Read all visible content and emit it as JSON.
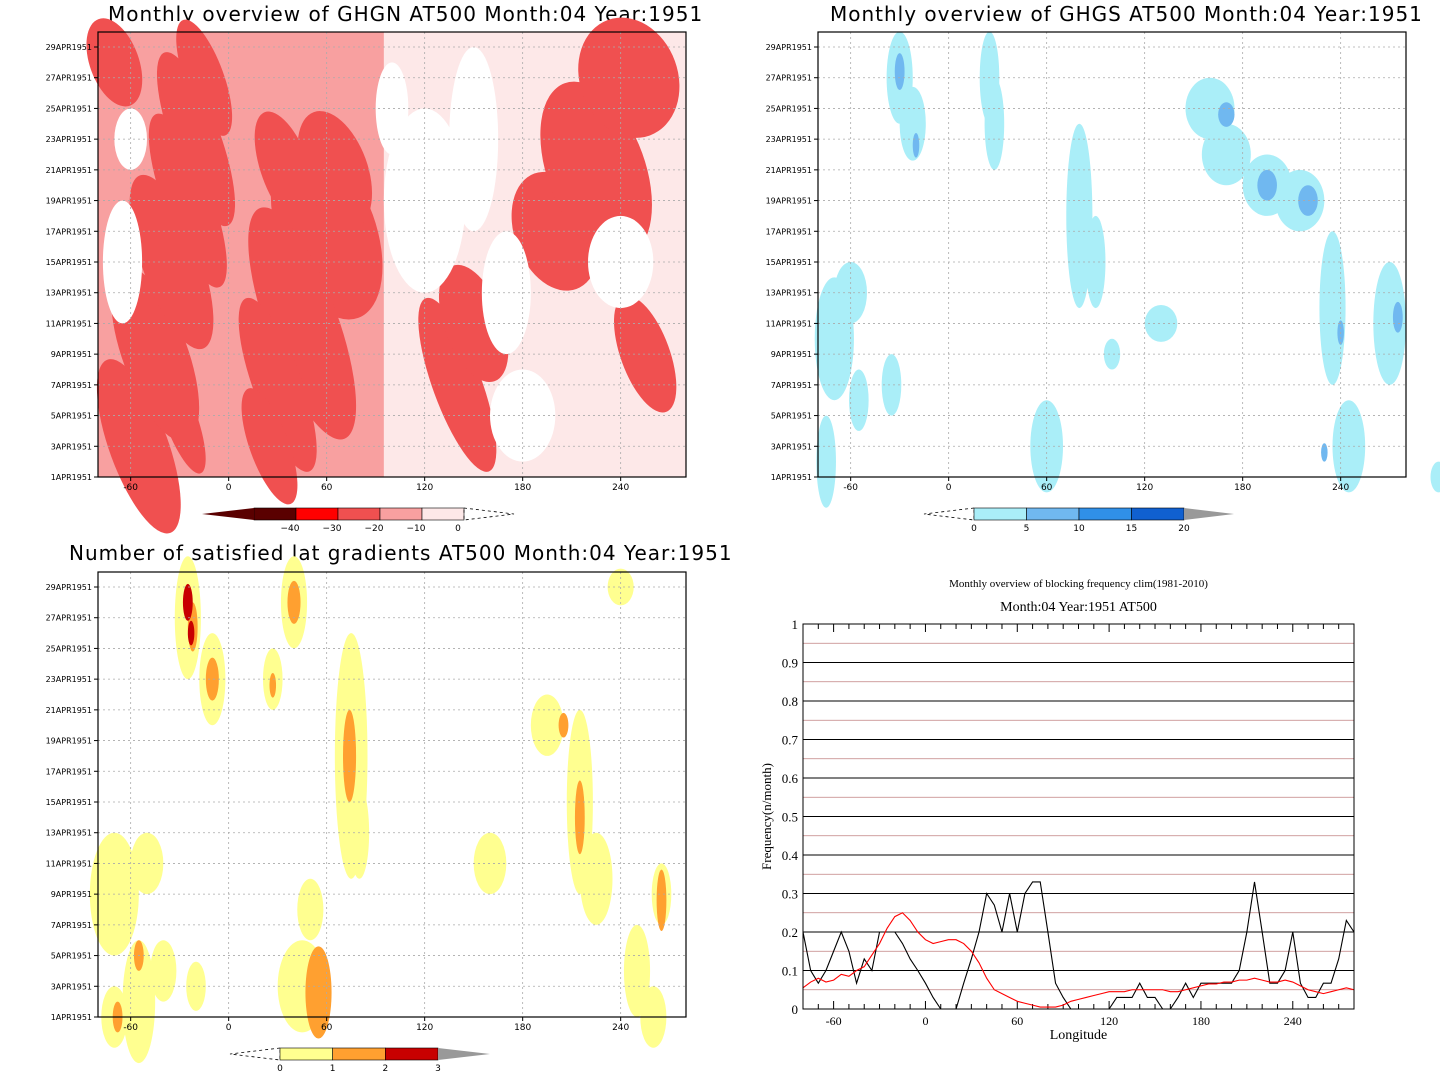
{
  "colors": {
    "red_scale": [
      "#5a0000",
      "#ff0000",
      "#f05050",
      "#f8a0a0",
      "#fde8e8"
    ],
    "blue_scale": [
      "#aaeef8",
      "#70b8f0",
      "#3090e8",
      "#1060d0"
    ],
    "yellow_scale": [
      "#ffff90",
      "#ffa030",
      "#c80000"
    ],
    "plot_bg": "#ffffff"
  },
  "top_left": {
    "title": "Monthly overview of GHGN AT500 Month:04 Year:1951",
    "colorbar_labels": [
      "−40",
      "−30",
      "−20",
      "−10",
      "0"
    ]
  },
  "top_right": {
    "title": "Monthly overview of GHGS AT500 Month:04 Year:1951",
    "colorbar_labels": [
      "0",
      "5",
      "10",
      "15",
      "20"
    ]
  },
  "bottom_left": {
    "title": "Number of satisfied lat gradients AT500 Month:04 Year:1951",
    "colorbar_labels": [
      "0",
      "1",
      "2",
      "3"
    ]
  },
  "dates": [
    "29APR1951",
    "27APR1951",
    "25APR1951",
    "23APR1951",
    "21APR1951",
    "19APR1951",
    "17APR1951",
    "15APR1951",
    "13APR1951",
    "11APR1951",
    "9APR1951",
    "7APR1951",
    "5APR1951",
    "3APR1951",
    "1APR1951"
  ],
  "lon_ticks": [
    "-60",
    "0",
    "60",
    "120",
    "180",
    "240"
  ],
  "chart_data": [
    {
      "type": "heatmap",
      "title": "Monthly overview of GHGN AT500 Month:04 Year:1951",
      "xlim": [
        -80,
        280
      ],
      "x_ticks": [
        -60,
        0,
        60,
        120,
        180,
        240
      ],
      "y_ticks": [
        "1APR1951",
        "3APR1951",
        "5APR1951",
        "7APR1951",
        "9APR1951",
        "11APR1951",
        "13APR1951",
        "15APR1951",
        "17APR1951",
        "19APR1951",
        "21APR1951",
        "23APR1951",
        "25APR1951",
        "27APR1951",
        "29APR1951"
      ],
      "levels": [
        -40,
        -30,
        -20,
        -10,
        0
      ]
    },
    {
      "type": "heatmap",
      "title": "Monthly overview of GHGS AT500 Month:04 Year:1951",
      "xlim": [
        -80,
        280
      ],
      "x_ticks": [
        -60,
        0,
        60,
        120,
        180,
        240
      ],
      "levels": [
        0,
        5,
        10,
        15,
        20
      ]
    },
    {
      "type": "heatmap",
      "title": "Number of satisfied lat gradients AT500 Month:04 Year:1951",
      "xlim": [
        -80,
        280
      ],
      "x_ticks": [
        -60,
        0,
        60,
        120,
        180,
        240
      ],
      "levels": [
        0,
        1,
        2,
        3
      ]
    },
    {
      "type": "line",
      "title": "Monthly overview of blocking frequency clim(1981-2010)",
      "subtitle": "Month:04 Year:1951  AT500",
      "xlabel": "Longitude",
      "ylabel": "Frequency(n/month)",
      "xlim": [
        -80,
        280
      ],
      "ylim": [
        0,
        1
      ],
      "x_ticks": [
        -60,
        0,
        60,
        120,
        180,
        240
      ],
      "y_ticks": [
        "0",
        "0.1",
        "0.2",
        "0.3",
        "0.4",
        "0.5",
        "0.6",
        "0.7",
        "0.8",
        "0.9",
        "1"
      ],
      "grid": true,
      "series": [
        {
          "color": "#000000",
          "x": [
            -80,
            -75,
            -70,
            -65,
            -60,
            -55,
            -50,
            -45,
            -40,
            -35,
            -30,
            -25,
            -20,
            -15,
            -10,
            -5,
            0,
            5,
            10,
            15,
            20,
            25,
            30,
            35,
            40,
            45,
            50,
            55,
            60,
            65,
            70,
            75,
            80,
            85,
            90,
            95,
            100,
            105,
            110,
            115,
            120,
            125,
            130,
            135,
            140,
            145,
            150,
            155,
            160,
            165,
            170,
            175,
            180,
            185,
            190,
            195,
            200,
            205,
            210,
            215,
            220,
            225,
            230,
            235,
            240,
            245,
            250,
            255,
            260,
            265,
            270,
            275,
            280
          ],
          "values": [
            0.2,
            0.1,
            0.067,
            0.1,
            0.15,
            0.2,
            0.15,
            0.067,
            0.13,
            0.1,
            0.2,
            0.2,
            0.2,
            0.17,
            0.13,
            0.1,
            0.067,
            0.03,
            0,
            0,
            0,
            0.067,
            0.13,
            0.2,
            0.3,
            0.27,
            0.2,
            0.3,
            0.2,
            0.3,
            0.33,
            0.33,
            0.2,
            0.067,
            0.03,
            0,
            0,
            0,
            0,
            0,
            0,
            0.03,
            0.03,
            0.03,
            0.067,
            0.03,
            0.03,
            0,
            0,
            0.03,
            0.067,
            0.03,
            0.067,
            0.067,
            0.067,
            0.067,
            0.067,
            0.1,
            0.2,
            0.33,
            0.2,
            0.067,
            0.067,
            0.1,
            0.2,
            0.067,
            0.03,
            0.03,
            0.067,
            0.067,
            0.13,
            0.23,
            0.2
          ]
        },
        {
          "color": "#ff0000",
          "x": [
            -80,
            -75,
            -70,
            -65,
            -60,
            -55,
            -50,
            -45,
            -40,
            -35,
            -30,
            -25,
            -20,
            -15,
            -10,
            -5,
            0,
            5,
            10,
            15,
            20,
            25,
            30,
            35,
            40,
            45,
            50,
            55,
            60,
            65,
            70,
            75,
            80,
            85,
            90,
            95,
            100,
            105,
            110,
            115,
            120,
            125,
            130,
            135,
            140,
            145,
            150,
            155,
            160,
            165,
            170,
            175,
            180,
            185,
            190,
            195,
            200,
            205,
            210,
            215,
            220,
            225,
            230,
            235,
            240,
            245,
            250,
            255,
            260,
            265,
            270,
            275,
            280
          ],
          "values": [
            0.055,
            0.07,
            0.08,
            0.07,
            0.075,
            0.09,
            0.085,
            0.1,
            0.11,
            0.14,
            0.17,
            0.21,
            0.24,
            0.25,
            0.23,
            0.2,
            0.18,
            0.17,
            0.175,
            0.18,
            0.18,
            0.17,
            0.15,
            0.12,
            0.08,
            0.05,
            0.04,
            0.03,
            0.02,
            0.015,
            0.01,
            0.005,
            0.005,
            0.005,
            0.01,
            0.02,
            0.025,
            0.03,
            0.035,
            0.04,
            0.045,
            0.045,
            0.045,
            0.05,
            0.05,
            0.05,
            0.05,
            0.05,
            0.045,
            0.045,
            0.05,
            0.055,
            0.06,
            0.065,
            0.065,
            0.07,
            0.07,
            0.075,
            0.075,
            0.08,
            0.075,
            0.07,
            0.07,
            0.075,
            0.07,
            0.06,
            0.05,
            0.045,
            0.04,
            0.045,
            0.05,
            0.055,
            0.05
          ]
        }
      ]
    }
  ]
}
